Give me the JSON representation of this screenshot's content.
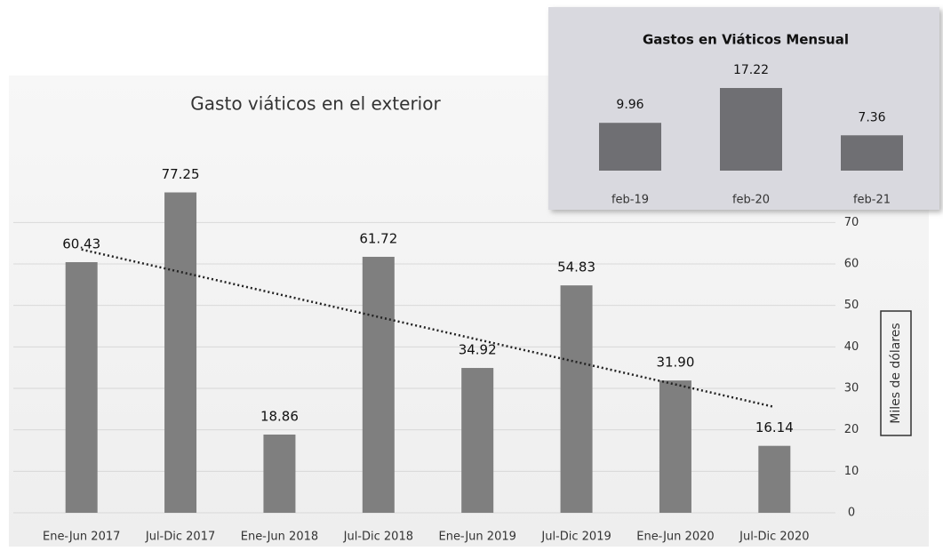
{
  "chart_data": [
    {
      "type": "bar",
      "title": "Gasto viáticos en el exterior",
      "categories": [
        "Ene-Jun 2017",
        "Jul-Dic 2017",
        "Ene-Jun 2018",
        "Jul-Dic 2018",
        "Ene-Jun 2019",
        "Jul-Dic 2019",
        "Ene-Jun 2020",
        "Jul-Dic 2020"
      ],
      "values": [
        60.43,
        77.25,
        18.86,
        61.72,
        34.92,
        54.83,
        31.9,
        16.14
      ],
      "value_labels": [
        "60.43",
        "77.25",
        "18.86",
        "61.72",
        "34.92",
        "54.83",
        "31.90",
        "16.14"
      ],
      "color": "#7f7f7f",
      "ylabel": "Miles de dólares",
      "ylim": [
        0,
        90
      ],
      "yticks": [
        0,
        10,
        20,
        30,
        40,
        50,
        60,
        70
      ],
      "grid": true,
      "trendline": "linear"
    },
    {
      "type": "bar",
      "title": "Gastos en Viáticos Mensual",
      "categories": [
        "feb-19",
        "feb-20",
        "feb-21"
      ],
      "values": [
        9.96,
        17.22,
        7.36
      ],
      "color": "#6f6f73",
      "ylim": [
        0,
        20
      ]
    }
  ]
}
